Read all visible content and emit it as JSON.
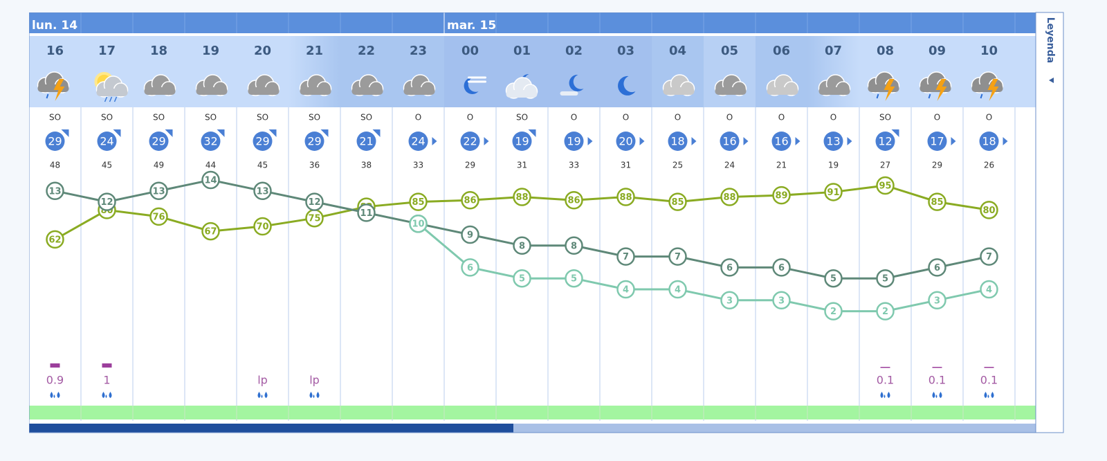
{
  "days": [
    "lun. 14",
    null,
    null,
    null,
    null,
    null,
    null,
    null,
    "mar. 15",
    null,
    null,
    null,
    null,
    null,
    null,
    null,
    null,
    null,
    null
  ],
  "legend_tab": "Leyenda",
  "hours": [
    "16",
    "17",
    "18",
    "19",
    "20",
    "21",
    "22",
    "23",
    "00",
    "01",
    "02",
    "03",
    "04",
    "05",
    "06",
    "07",
    "08",
    "09",
    "10"
  ],
  "wind_direction": [
    "SO",
    "SO",
    "SO",
    "SO",
    "SO",
    "SO",
    "SO",
    "O",
    "O",
    "SO",
    "O",
    "O",
    "O",
    "O",
    "O",
    "O",
    "SO",
    "O",
    "O"
  ],
  "wind_speed": [
    29,
    24,
    29,
    32,
    29,
    29,
    21,
    24,
    22,
    19,
    19,
    20,
    18,
    16,
    16,
    13,
    12,
    17,
    18
  ],
  "gusts": [
    48,
    45,
    49,
    44,
    45,
    36,
    38,
    33,
    29,
    31,
    33,
    31,
    25,
    24,
    21,
    19,
    27,
    29,
    26
  ],
  "temperature": {
    "color": "#5e8878",
    "values": [
      13,
      12,
      13,
      14,
      13,
      12,
      11,
      10,
      9,
      8,
      8,
      7,
      7,
      6,
      6,
      5,
      5,
      6,
      7
    ]
  },
  "feels_like": {
    "color": "#7fc9ae",
    "values": [
      null,
      null,
      null,
      null,
      null,
      null,
      null,
      10,
      6,
      5,
      5,
      4,
      4,
      3,
      3,
      2,
      2,
      3,
      4
    ]
  },
  "humidity": {
    "color": "#8aab22",
    "values": [
      62,
      80,
      76,
      67,
      70,
      75,
      82,
      85,
      86,
      88,
      86,
      88,
      85,
      88,
      89,
      91,
      95,
      85,
      80
    ]
  },
  "precipitation": [
    "0.9",
    "1",
    null,
    null,
    "lp",
    "lp",
    null,
    null,
    null,
    null,
    null,
    null,
    null,
    null,
    null,
    null,
    "0.1",
    "0.1",
    "0.1"
  ]
}
